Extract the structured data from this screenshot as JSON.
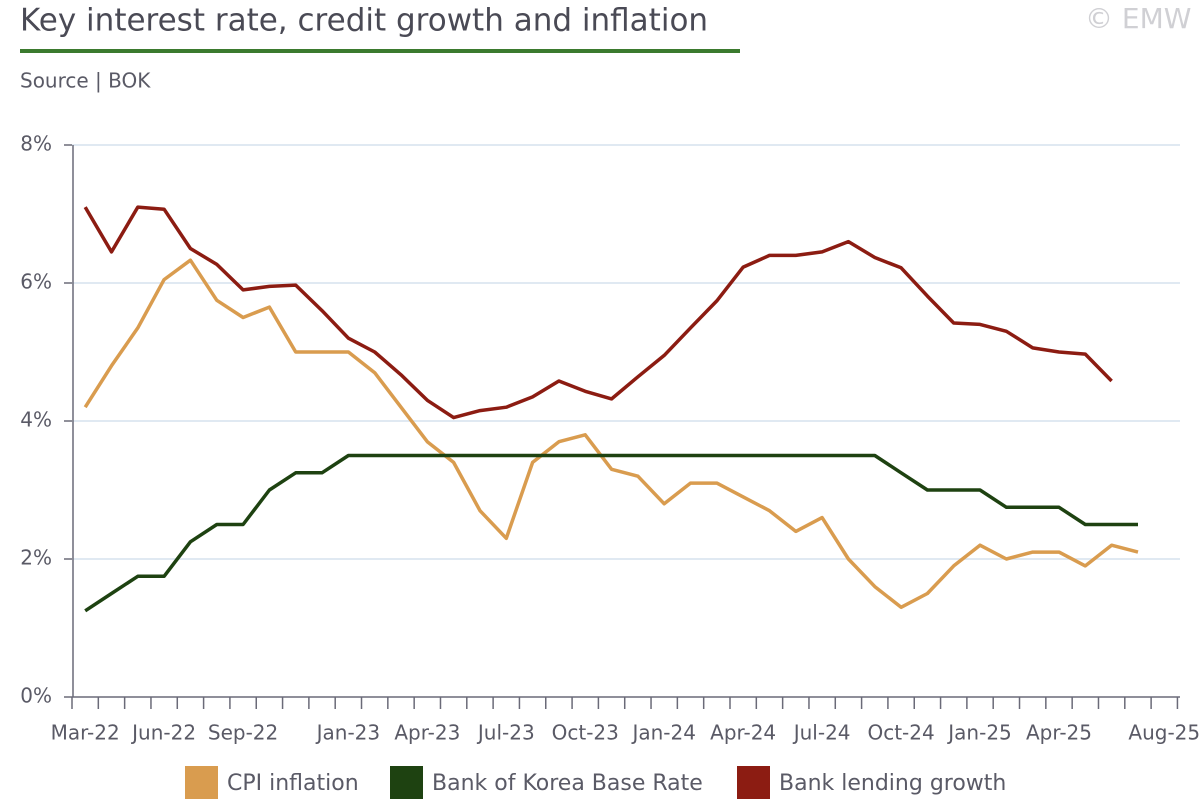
{
  "chart_data": {
    "type": "line",
    "title": "Key interest rate, credit growth and inflation",
    "subtitle": "Source | BOK",
    "watermark": "© EMW",
    "categories": [
      "Mar-22",
      null,
      null,
      "Jun-22",
      null,
      null,
      "Sep-22",
      null,
      null,
      null,
      "Jan-23",
      null,
      null,
      "Apr-23",
      null,
      null,
      "Jul-23",
      null,
      null,
      "Oct-23",
      null,
      null,
      "Jan-24",
      null,
      null,
      "Apr-24",
      null,
      null,
      "Jul-24",
      null,
      null,
      "Oct-24",
      null,
      null,
      "Jan-25",
      null,
      null,
      "Apr-25",
      null,
      null,
      null,
      "Aug-25"
    ],
    "series": [
      {
        "name": "CPI inflation",
        "color": "#d99c4f",
        "values": [
          4.2,
          4.8,
          5.35,
          6.05,
          6.33,
          5.75,
          5.5,
          5.65,
          5.0,
          5.0,
          5.0,
          4.7,
          4.2,
          3.7,
          3.4,
          2.7,
          2.3,
          3.4,
          3.7,
          3.8,
          3.3,
          3.2,
          2.8,
          3.1,
          3.1,
          2.9,
          2.7,
          2.4,
          2.6,
          2.0,
          1.6,
          1.3,
          1.5,
          1.9,
          2.2,
          2.0,
          2.1,
          2.1,
          1.9,
          2.2,
          2.1,
          null
        ]
      },
      {
        "name": "Bank of Korea Base Rate",
        "color": "#1e4211",
        "values": [
          1.25,
          1.5,
          1.75,
          1.75,
          2.25,
          2.5,
          2.5,
          3.0,
          3.25,
          3.25,
          3.5,
          3.5,
          3.5,
          3.5,
          3.5,
          3.5,
          3.5,
          3.5,
          3.5,
          3.5,
          3.5,
          3.5,
          3.5,
          3.5,
          3.5,
          3.5,
          3.5,
          3.5,
          3.5,
          3.5,
          3.5,
          3.25,
          3.0,
          3.0,
          3.0,
          2.75,
          2.75,
          2.75,
          2.5,
          2.5,
          2.5,
          null
        ]
      },
      {
        "name": "Bank lending growth",
        "color": "#8c1c12",
        "values": [
          7.1,
          6.45,
          7.1,
          7.07,
          6.5,
          6.27,
          5.9,
          5.95,
          5.97,
          5.6,
          5.2,
          5.0,
          4.67,
          4.3,
          4.05,
          4.15,
          4.2,
          4.35,
          4.58,
          4.43,
          4.32,
          4.64,
          4.95,
          5.35,
          5.74,
          6.23,
          6.4,
          6.4,
          6.45,
          6.6,
          6.37,
          6.22,
          5.81,
          5.42,
          5.4,
          5.3,
          5.06,
          5.0,
          4.97,
          4.58,
          null,
          null
        ]
      }
    ],
    "ylim": [
      0,
      8
    ],
    "yticks": [
      {
        "value": 0,
        "label": "0%"
      },
      {
        "value": 2,
        "label": "2%"
      },
      {
        "value": 4,
        "label": "4%"
      },
      {
        "value": 6,
        "label": "6%"
      },
      {
        "value": 8,
        "label": "8%"
      }
    ],
    "grid": true,
    "legend": "bottom"
  }
}
